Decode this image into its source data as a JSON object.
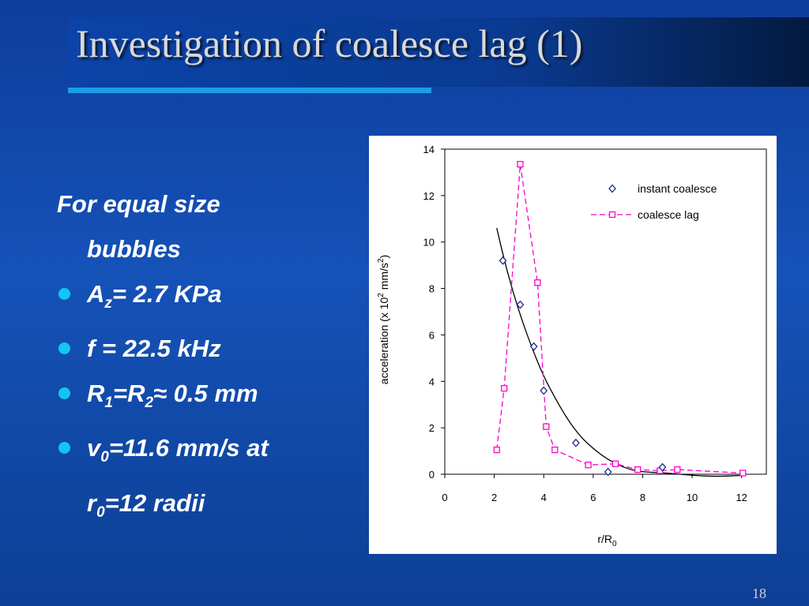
{
  "slide": {
    "title": "Investigation of coalesce lag (1)",
    "page_number": "18",
    "bullets": {
      "lead_line1": "For equal size",
      "lead_line2": "bubbles",
      "b1_a": "A",
      "b1_sub": "z",
      "b1_b": "= 2.7 KPa",
      "b2": "f = 22.5 kHz",
      "b3_a": "R",
      "b3_sub1": "1",
      "b3_b": "=R",
      "b3_sub2": "2",
      "b3_c": "≈ 0.5 mm",
      "b4_a": "v",
      "b4_sub": "0",
      "b4_b": "=11.6 mm/s at",
      "b4_c": "r",
      "b4_sub2": "0",
      "b4_d": "=12 radii"
    },
    "colors": {
      "background": "#1552b8",
      "title_text": "#d8d8d8",
      "rule": "#1a9ee8",
      "bullet_dot": "#12c6f2",
      "instant_series": "#1a2a8a",
      "lag_series": "#ff00cc"
    }
  },
  "chart_data": {
    "type": "scatter",
    "xlabel_main": "r/R",
    "xlabel_sub": "0",
    "ylabel_main": "acceleration (x 10",
    "ylabel_sup": "2",
    "ylabel_mid": " mm/s",
    "ylabel_sup2": "2",
    "ylabel_end": ")",
    "xlim": [
      0,
      13
    ],
    "ylim": [
      0,
      14
    ],
    "x_ticks": [
      "0",
      "2",
      "4",
      "6",
      "8",
      "10",
      "12"
    ],
    "y_ticks": [
      "0",
      "2",
      "4",
      "6",
      "8",
      "10",
      "12",
      "14"
    ],
    "legend_position": "top-right",
    "series": [
      {
        "name": "instant coalesce",
        "marker": "diamond",
        "x": [
          2.35,
          3.05,
          3.6,
          4.0,
          5.3,
          6.6,
          8.8
        ],
        "y": [
          9.2,
          7.3,
          5.5,
          3.6,
          1.35,
          0.1,
          0.3
        ]
      },
      {
        "name": "coalesce lag",
        "marker": "square",
        "line": "dashed",
        "x": [
          2.1,
          2.4,
          3.05,
          3.75,
          4.1,
          4.45,
          5.8,
          6.9,
          7.8,
          8.7,
          9.4,
          12.05
        ],
        "y": [
          1.05,
          3.7,
          13.35,
          8.25,
          2.05,
          1.05,
          0.4,
          0.45,
          0.2,
          0.15,
          0.2,
          0.05
        ]
      }
    ],
    "fit_curve": {
      "x": [
        2.1,
        2.5,
        3.0,
        3.5,
        4.0,
        4.5,
        5.0,
        5.5,
        6.0,
        6.5,
        7.0,
        7.5,
        8.0,
        9.0,
        10.0,
        11.0,
        12.0
      ],
      "y": [
        10.6,
        8.8,
        7.0,
        5.5,
        4.2,
        3.2,
        2.3,
        1.6,
        1.1,
        0.7,
        0.4,
        0.2,
        0.1,
        0.05,
        -0.05,
        -0.1,
        -0.05
      ]
    }
  }
}
